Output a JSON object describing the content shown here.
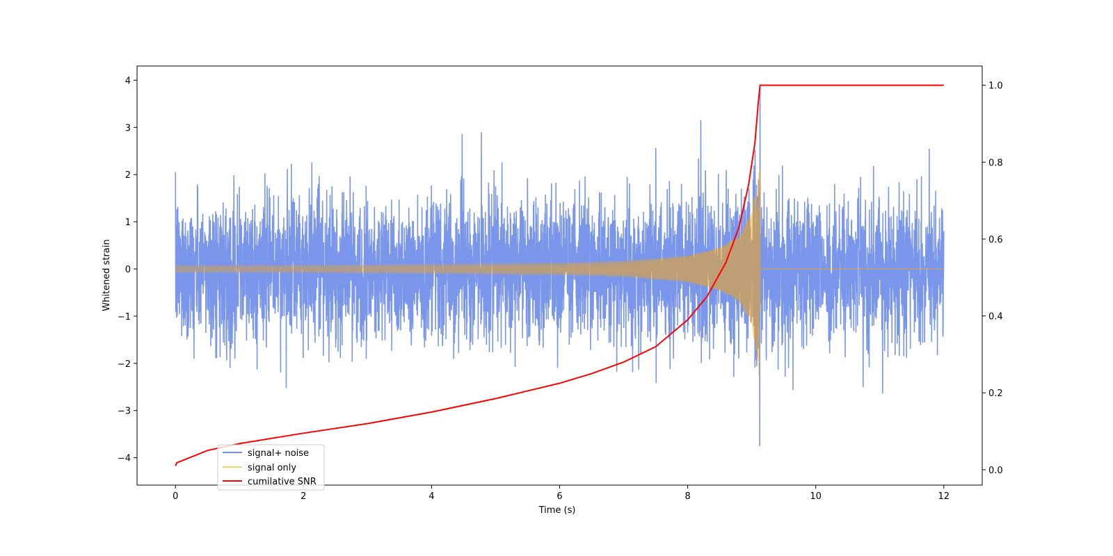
{
  "chart_data": {
    "type": "line",
    "title": "",
    "xlabel": "Time (s)",
    "ylabel": "Whitened strain",
    "y2label": "",
    "xlim": [
      -0.6,
      12.6
    ],
    "ylim": [
      -4.58,
      4.3
    ],
    "y2lim": [
      -0.04,
      1.05
    ],
    "x_ticks": [
      0,
      2,
      4,
      6,
      8,
      10,
      12
    ],
    "x_tick_labels": [
      "0",
      "2",
      "4",
      "6",
      "8",
      "10",
      "12"
    ],
    "y_ticks": [
      4,
      3,
      2,
      1,
      0,
      -1,
      -2,
      -3,
      -4
    ],
    "y_tick_labels": [
      "4",
      "3",
      "2",
      "1",
      "0",
      "−1",
      "−2",
      "−3",
      "−4"
    ],
    "y2_ticks": [
      1.0,
      0.8,
      0.6,
      0.4,
      0.2,
      0.0
    ],
    "y2_tick_labels": [
      "1.0",
      "0.8",
      "0.6",
      "0.4",
      "0.2",
      "0.0"
    ],
    "grid": false,
    "legend_position": "lower-left",
    "merger_time": 9.13,
    "series": [
      {
        "name": "signal+ noise",
        "color": "#4169e1",
        "axis": "left",
        "description_values": {
          "t_start": 0,
          "t_end": 12,
          "noise_typical_max": 2.5,
          "noise_peak_max": 3.9,
          "noise_peak_min": -4.15
        }
      },
      {
        "name": "signal only",
        "color": "#ffa500",
        "axis": "left",
        "envelope": {
          "t": [
            0,
            2,
            4,
            6,
            7,
            8,
            8.5,
            8.8,
            9.0,
            9.1,
            9.13
          ],
          "amp": [
            0.07,
            0.075,
            0.09,
            0.12,
            0.16,
            0.28,
            0.45,
            0.7,
            1.2,
            2.0,
            2.7
          ]
        }
      },
      {
        "name": "cumilative SNR",
        "color": "#ff0000",
        "axis": "right",
        "x": [
          0,
          0.02,
          0.5,
          1,
          2,
          3,
          4,
          5,
          6,
          6.5,
          7,
          7.5,
          8,
          8.3,
          8.6,
          8.8,
          8.95,
          9.05,
          9.1,
          9.13,
          10,
          11,
          12
        ],
        "y": [
          0.01,
          0.018,
          0.05,
          0.068,
          0.095,
          0.12,
          0.15,
          0.185,
          0.225,
          0.25,
          0.28,
          0.32,
          0.39,
          0.45,
          0.54,
          0.63,
          0.74,
          0.85,
          0.95,
          1.0,
          1.0,
          1.0,
          1.0
        ]
      }
    ]
  }
}
